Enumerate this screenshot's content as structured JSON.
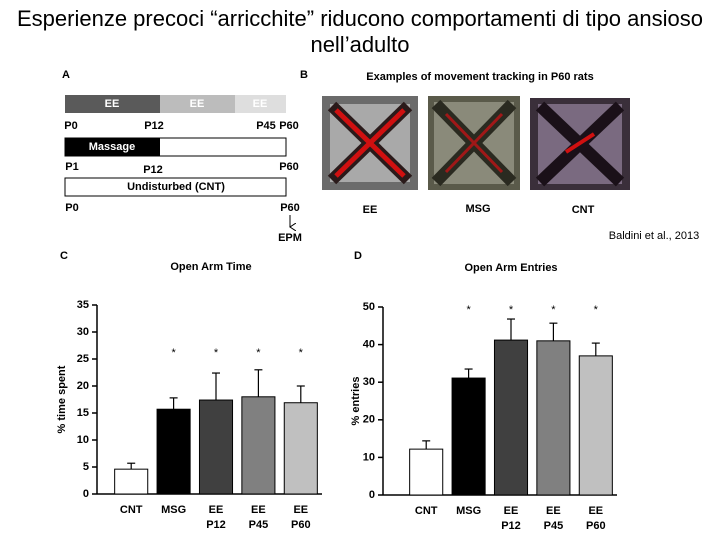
{
  "title": "Esperienze precoci “arricchite” riducono comportamenti di tipo ansioso nell’adulto",
  "citation": "Baldini et al., 2013",
  "panel_a": {
    "label": "A",
    "ee_segments": [
      "EE",
      "EE",
      "EE"
    ],
    "ee_ticks": [
      "P0",
      "P12",
      "P45",
      "P60"
    ],
    "massage": "Massage",
    "massage_ticks": [
      "P1",
      "P12",
      "P60"
    ],
    "cnt": "Undisturbed (CNT)",
    "cnt_ticks": [
      "P0",
      "P60"
    ],
    "test": "EPM"
  },
  "panel_b": {
    "label": "B",
    "caption": "Examples of movement tracking in P60 rats",
    "groups": [
      "EE",
      "MSG",
      "CNT"
    ]
  },
  "chart_data": [
    {
      "type": "bar",
      "panel": "C",
      "title": "Open Arm Time",
      "y_label": "% time spent",
      "categories": [
        "CNT",
        "MSG",
        "EE P12",
        "EE P45",
        "EE P60"
      ],
      "values": [
        4.6,
        15.7,
        17.4,
        18.0,
        16.9
      ],
      "errors": [
        1.1,
        2.1,
        5.0,
        5.0,
        3.1
      ],
      "colors": [
        "#ffffff",
        "#000000",
        "#404040",
        "#808080",
        "#c0c0c0"
      ],
      "significance": [
        null,
        "*",
        "*",
        "*",
        "*"
      ],
      "ylim": [
        0,
        35
      ],
      "yticks": [
        0,
        5,
        10,
        15,
        20,
        25,
        30,
        35
      ]
    },
    {
      "type": "bar",
      "panel": "D",
      "title": "Open Arm Entries",
      "y_label": "% entries",
      "categories": [
        "CNT",
        "MSG",
        "EE P12",
        "EE P45",
        "EE P60"
      ],
      "values": [
        12.2,
        31.1,
        41.2,
        41.0,
        37.0
      ],
      "errors": [
        2.2,
        2.4,
        5.6,
        4.7,
        3.4
      ],
      "colors": [
        "#ffffff",
        "#000000",
        "#404040",
        "#808080",
        "#c0c0c0"
      ],
      "significance": [
        null,
        "*",
        "*",
        "*",
        "*"
      ],
      "ylim": [
        0,
        50
      ],
      "yticks": [
        0,
        10,
        20,
        30,
        40,
        50
      ]
    }
  ]
}
